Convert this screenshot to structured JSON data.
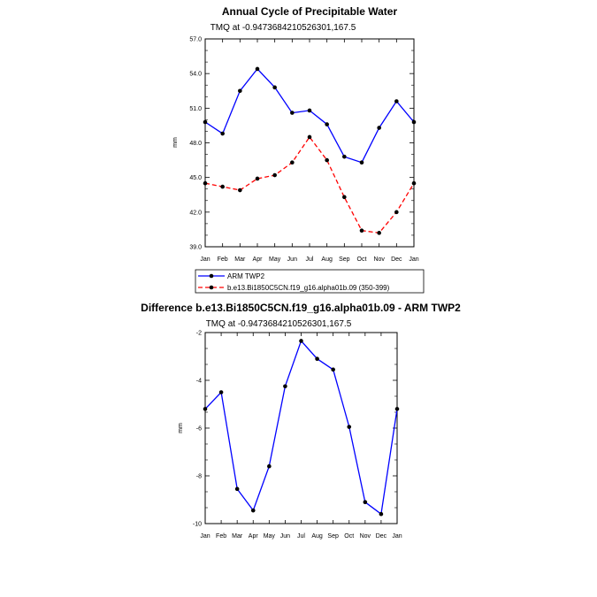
{
  "chart_data": [
    {
      "type": "line",
      "title": "Annual Cycle of Precipitable Water",
      "subtitle": "TMQ at -0.9473684210526301,167.5",
      "ylabel": "mm",
      "xlabel": "",
      "categories": [
        "Jan",
        "Feb",
        "Mar",
        "Apr",
        "May",
        "Jun",
        "Jul",
        "Aug",
        "Sep",
        "Oct",
        "Nov",
        "Dec",
        "Jan"
      ],
      "ylim": [
        39.0,
        57.0
      ],
      "yticks": [
        "39.0",
        "42.0",
        "45.0",
        "48.0",
        "51.0",
        "54.0",
        "57.0"
      ],
      "series": [
        {
          "name": "ARM TWP2",
          "color": "#0000ff",
          "dash": "solid",
          "values": [
            49.8,
            48.8,
            52.5,
            54.4,
            52.8,
            50.6,
            50.8,
            49.6,
            46.8,
            46.3,
            49.3,
            51.6,
            49.8
          ]
        },
        {
          "name": "b.e13.Bi1850C5CN.f19_g16.alpha01b.09 (350-399)",
          "color": "#ff0000",
          "dash": "dashed",
          "values": [
            44.5,
            44.2,
            43.9,
            44.9,
            45.2,
            46.3,
            48.5,
            46.5,
            43.3,
            40.4,
            40.2,
            42.0,
            44.5
          ]
        }
      ],
      "legend_position": "bottom"
    },
    {
      "type": "line",
      "title": "Difference b.e13.Bi1850C5CN.f19_g16.alpha01b.09 - ARM TWP2",
      "subtitle": "TMQ at -0.9473684210526301,167.5",
      "ylabel": "mm",
      "xlabel": "",
      "categories": [
        "Jan",
        "Feb",
        "Mar",
        "Apr",
        "May",
        "Jun",
        "Jul",
        "Aug",
        "Sep",
        "Oct",
        "Nov",
        "Dec",
        "Jan"
      ],
      "ylim": [
        -10,
        -2
      ],
      "yticks": [
        "-10",
        "-8",
        "-6",
        "-4",
        "-2"
      ],
      "series": [
        {
          "color": "#0000ff",
          "dash": "solid",
          "values": [
            -5.2,
            -4.5,
            -8.55,
            -9.45,
            -7.6,
            -4.25,
            -2.35,
            -3.1,
            -3.55,
            -5.95,
            -9.1,
            -9.6,
            -5.2
          ]
        }
      ]
    }
  ]
}
